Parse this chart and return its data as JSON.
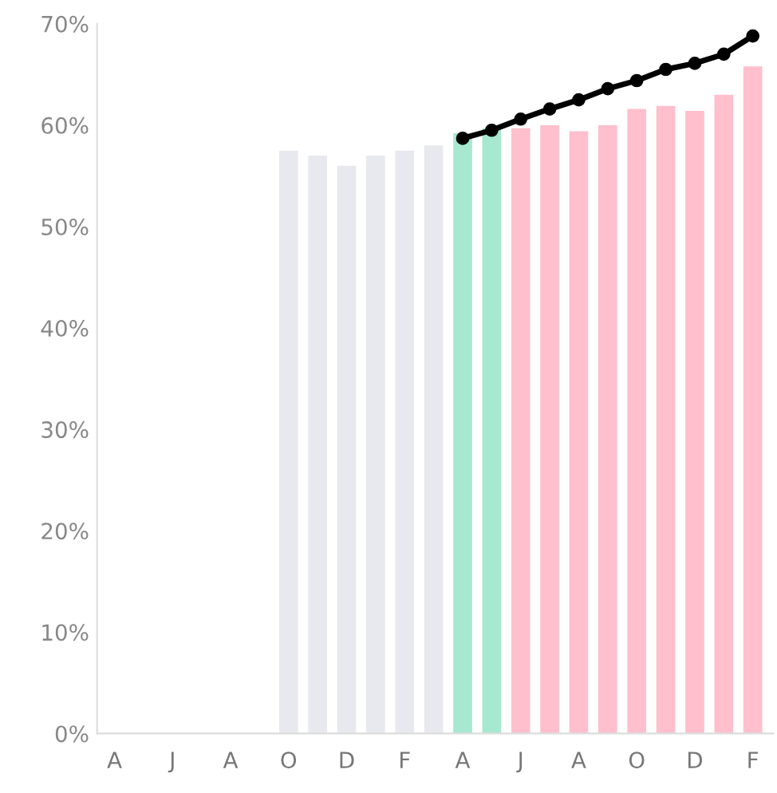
{
  "chart_data": {
    "type": "bar",
    "categories": [
      "A",
      null,
      "J",
      null,
      "A",
      null,
      "O",
      null,
      "D",
      null,
      "F",
      null,
      "A",
      null,
      "J",
      null,
      "A",
      null,
      "O",
      null,
      "D",
      null,
      "F"
    ],
    "series": [
      {
        "values": [
          null,
          null,
          null,
          null,
          null,
          null,
          57.5,
          57,
          56,
          57,
          57.5,
          58,
          59.2,
          59.7,
          59.7,
          60,
          59.4,
          60,
          61.6,
          61.9,
          61.4,
          63,
          65.8
        ],
        "colors": [
          "#e8e9ee",
          "#e8e9ee",
          "#e8e9ee",
          "#e8e9ee",
          "#e8e9ee",
          "#e8e9ee",
          "#e8e9ee",
          "#e8e9ee",
          "#e8e9ee",
          "#e8e9ee",
          "#e8e9ee",
          "#e8e9ee",
          "#a6e8d0",
          "#a6e8d0",
          "#ffbfcd",
          "#ffbfcd",
          "#ffbfcd",
          "#ffbfcd",
          "#ffbfcd",
          "#ffbfcd",
          "#ffbfcd",
          "#ffbfcd",
          "#ffbfcd"
        ]
      },
      {
        "type": "line",
        "color": "#000000",
        "marker": "circle",
        "values": [
          null,
          null,
          null,
          null,
          null,
          null,
          null,
          null,
          null,
          null,
          null,
          null,
          58.7,
          59.5,
          60.6,
          61.6,
          62.5,
          63.6,
          64.4,
          65.5,
          66.1,
          67,
          68.8
        ]
      }
    ],
    "ylim": [
      0,
      70
    ],
    "yticks": [
      {
        "value": 0,
        "label": "0%"
      },
      {
        "value": 10,
        "label": "10%"
      },
      {
        "value": 20,
        "label": "20%"
      },
      {
        "value": 30,
        "label": "30%"
      },
      {
        "value": 40,
        "label": "40%"
      },
      {
        "value": 50,
        "label": "50%"
      },
      {
        "value": 60,
        "label": "60%"
      },
      {
        "value": 70,
        "label": "70%"
      }
    ],
    "grid": false,
    "legend": false
  }
}
